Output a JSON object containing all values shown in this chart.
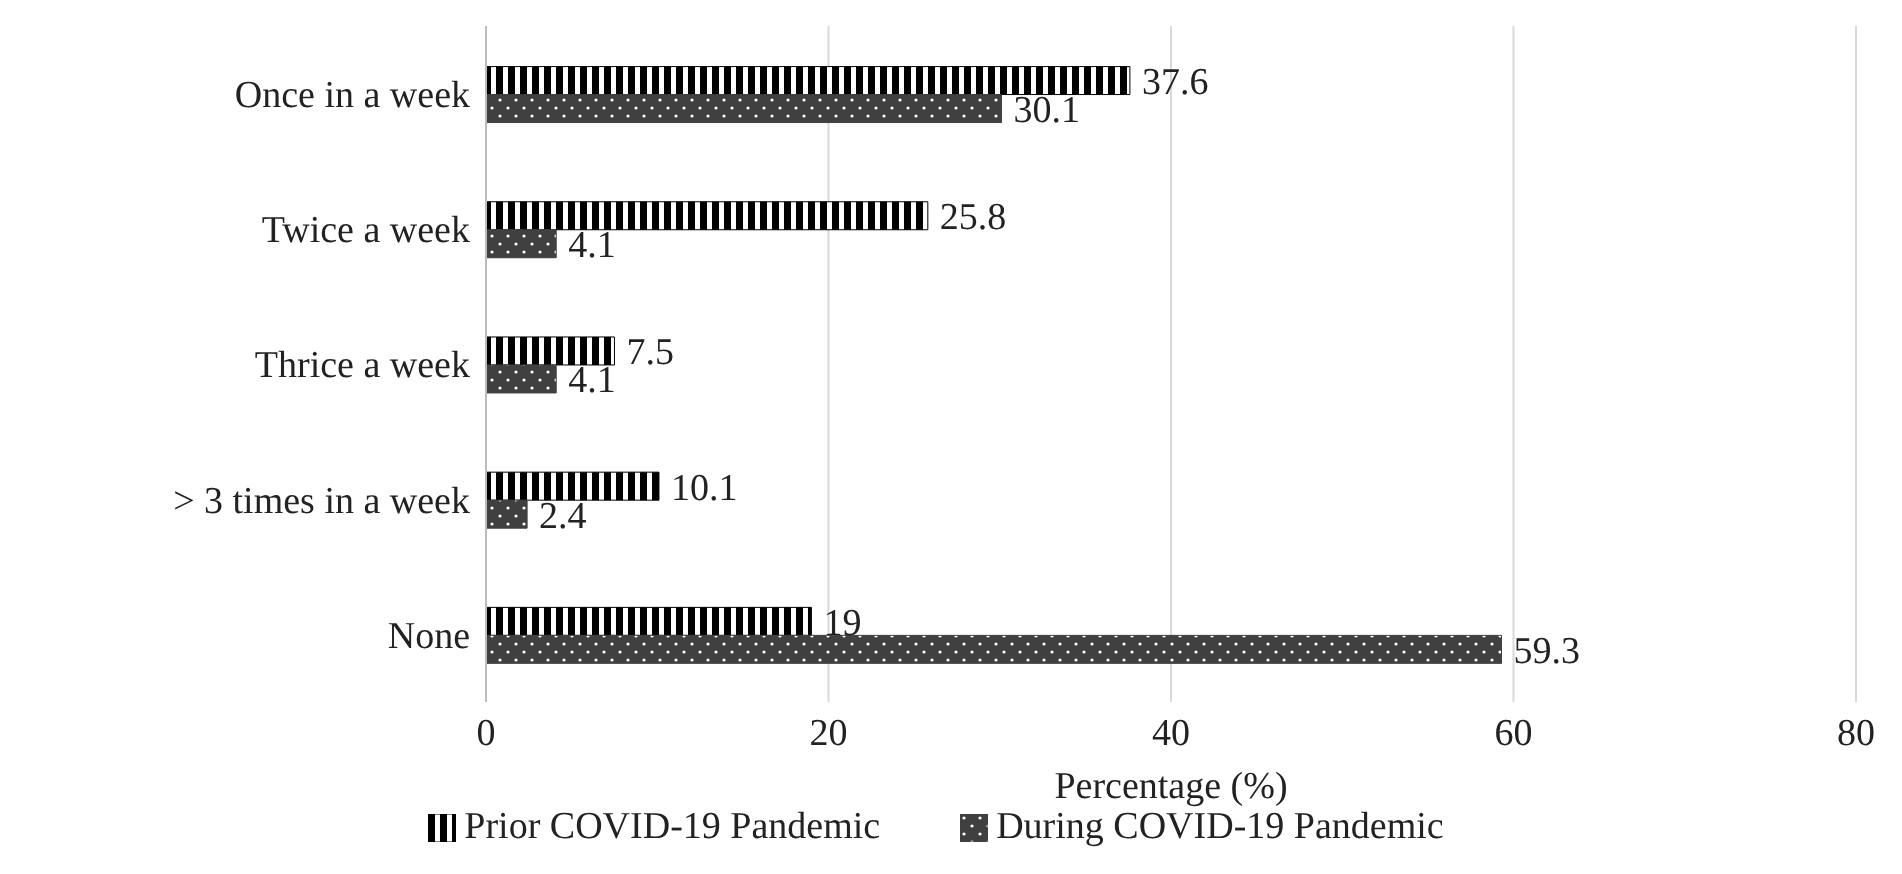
{
  "chart_data": {
    "type": "bar",
    "orientation": "horizontal",
    "xlabel": "Percentage (%)",
    "categories": [
      "Once in a week",
      "Twice a week",
      "Thrice a week",
      "> 3 times in a week",
      "None"
    ],
    "series": [
      {
        "name": "Prior COVID-19 Pandemic",
        "color": "#000000",
        "values": [
          37.6,
          25.8,
          7.5,
          10.1,
          19
        ]
      },
      {
        "name": "During COVID-19 Pandemic",
        "color": "#404040",
        "values": [
          30.1,
          4.1,
          4.1,
          2.4,
          59.3
        ]
      }
    ],
    "xlim": [
      0,
      80
    ],
    "xticks": [
      0,
      20,
      40,
      60,
      80
    ],
    "grid": "x",
    "legend": "bottom",
    "data_labels": true
  }
}
